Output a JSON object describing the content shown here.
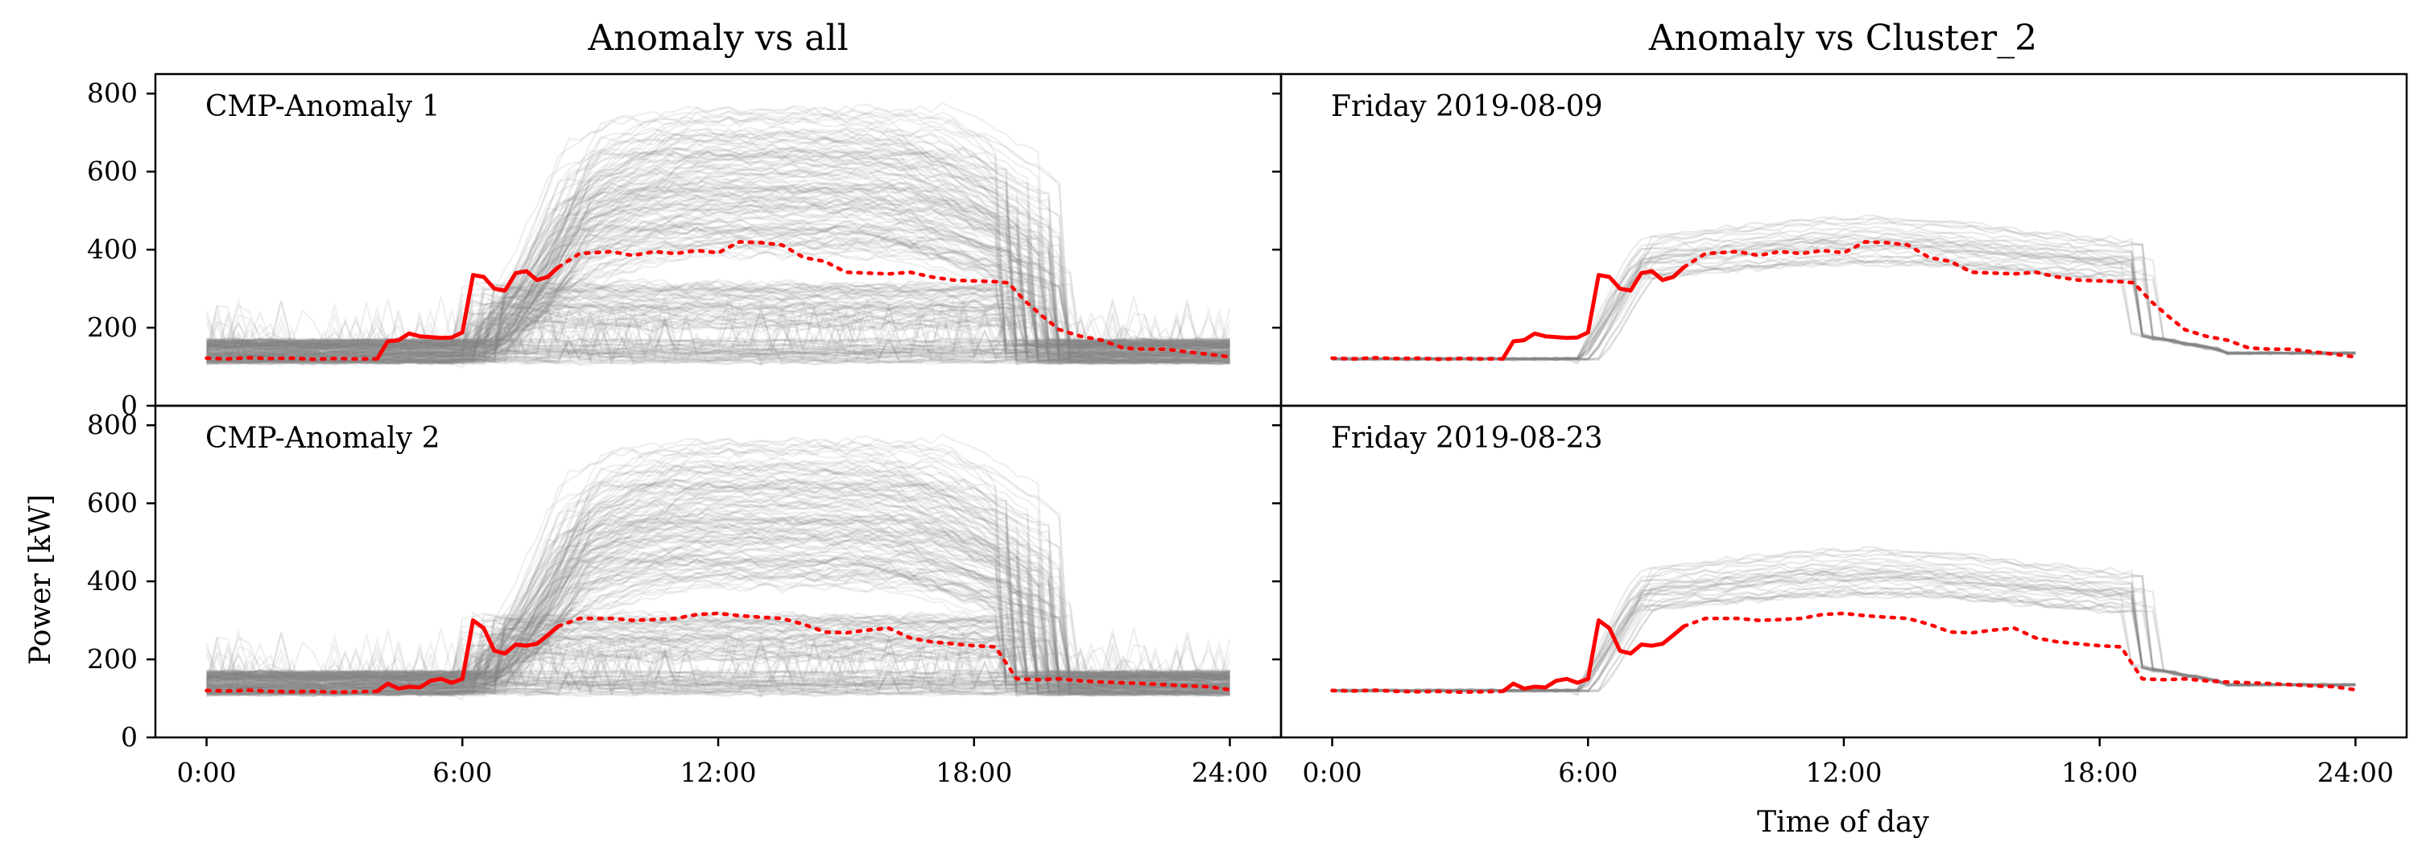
{
  "chart_data": [
    {
      "type": "line",
      "title": "Anomaly vs all",
      "annotation": "CMP-Anomaly 1",
      "xlabel": "",
      "ylabel": "",
      "xlim": [
        -1.2,
        25.2
      ],
      "ylim": [
        0,
        850
      ],
      "xticks": [
        "0:00",
        "6:00",
        "12:00",
        "18:00",
        "24:00"
      ],
      "yticks": [
        "0",
        "200",
        "400",
        "600",
        "800"
      ],
      "grid": false,
      "background": "all-days-gray",
      "series": [
        {
          "style": "dotted",
          "color": "#ff0000",
          "x": [
            0,
            0.5,
            1,
            1.5,
            2,
            2.5,
            3,
            3.5,
            4
          ],
          "y": [
            122,
            120,
            123,
            121,
            122,
            119,
            121,
            120,
            120
          ]
        },
        {
          "style": "solid",
          "color": "#ff0000",
          "x": [
            4,
            4.25,
            4.5,
            4.75,
            5,
            5.25,
            5.5,
            5.75,
            6,
            6.25,
            6.5,
            6.75,
            7,
            7.25,
            7.5,
            7.75,
            8,
            8.25
          ],
          "y": [
            120,
            165,
            168,
            185,
            178,
            176,
            174,
            175,
            188,
            335,
            330,
            300,
            295,
            340,
            345,
            322,
            330,
            355
          ]
        },
        {
          "style": "dotted",
          "color": "#ff0000",
          "x": [
            8.25,
            8.75,
            9.5,
            10,
            10.5,
            11,
            11.5,
            12,
            12.5,
            13,
            13.5,
            14,
            14.5,
            15,
            15.5,
            16,
            16.5,
            17,
            17.5,
            18,
            18.5,
            18.8,
            19.2,
            19.6,
            20,
            20.5,
            21,
            21.5,
            22,
            22.5,
            23,
            23.5,
            24
          ],
          "y": [
            355,
            390,
            395,
            385,
            395,
            390,
            398,
            392,
            420,
            418,
            412,
            380,
            370,
            342,
            340,
            338,
            342,
            330,
            322,
            320,
            318,
            315,
            268,
            230,
            195,
            178,
            168,
            148,
            145,
            145,
            138,
            132,
            125
          ]
        }
      ]
    },
    {
      "type": "line",
      "title": "Anomaly vs Cluster_2",
      "annotation": "Friday 2019-08-09",
      "xlabel": "",
      "ylabel": "",
      "xlim": [
        -1.2,
        25.2
      ],
      "ylim": [
        0,
        850
      ],
      "xticks": [
        "0:00",
        "6:00",
        "12:00",
        "18:00",
        "24:00"
      ],
      "yticks": [
        "0",
        "200",
        "400",
        "600",
        "800"
      ],
      "grid": false,
      "background": "cluster-days-gray",
      "series": [
        {
          "style": "dotted",
          "color": "#ff0000",
          "x": [
            0,
            0.5,
            1,
            1.5,
            2,
            2.5,
            3,
            3.5,
            4
          ],
          "y": [
            122,
            120,
            123,
            121,
            122,
            119,
            121,
            120,
            120
          ]
        },
        {
          "style": "solid",
          "color": "#ff0000",
          "x": [
            4,
            4.25,
            4.5,
            4.75,
            5,
            5.25,
            5.5,
            5.75,
            6,
            6.25,
            6.5,
            6.75,
            7,
            7.25,
            7.5,
            7.75,
            8,
            8.25
          ],
          "y": [
            120,
            165,
            168,
            185,
            178,
            176,
            174,
            175,
            188,
            335,
            330,
            300,
            295,
            340,
            345,
            322,
            330,
            355
          ]
        },
        {
          "style": "dotted",
          "color": "#ff0000",
          "x": [
            8.25,
            8.75,
            9.5,
            10,
            10.5,
            11,
            11.5,
            12,
            12.5,
            13,
            13.5,
            14,
            14.5,
            15,
            15.5,
            16,
            16.5,
            17,
            17.5,
            18,
            18.5,
            18.8,
            19.2,
            19.6,
            20,
            20.5,
            21,
            21.5,
            22,
            22.5,
            23,
            23.5,
            24
          ],
          "y": [
            355,
            390,
            395,
            385,
            395,
            390,
            398,
            392,
            420,
            418,
            412,
            380,
            370,
            342,
            340,
            338,
            342,
            330,
            322,
            320,
            318,
            315,
            268,
            230,
            195,
            178,
            168,
            148,
            145,
            145,
            138,
            132,
            125
          ]
        }
      ]
    },
    {
      "type": "line",
      "title": "",
      "annotation": "CMP-Anomaly 2",
      "xlabel": "",
      "ylabel": "Power [kW]",
      "xlim": [
        -1.2,
        25.2
      ],
      "ylim": [
        0,
        850
      ],
      "xticks": [
        "0:00",
        "6:00",
        "12:00",
        "18:00",
        "24:00"
      ],
      "yticks": [
        "0",
        "200",
        "400",
        "600",
        "800"
      ],
      "grid": false,
      "background": "all-days-gray",
      "series": [
        {
          "style": "dotted",
          "color": "#ff0000",
          "x": [
            0,
            0.5,
            1,
            1.5,
            2,
            2.5,
            3,
            3.5,
            4
          ],
          "y": [
            120,
            119,
            121,
            118,
            117,
            118,
            116,
            117,
            118
          ]
        },
        {
          "style": "solid",
          "color": "#ff0000",
          "x": [
            4,
            4.25,
            4.5,
            4.75,
            5,
            5.25,
            5.5,
            5.75,
            6,
            6.25,
            6.5,
            6.75,
            7,
            7.25,
            7.5,
            7.75,
            8,
            8.25
          ],
          "y": [
            118,
            138,
            125,
            130,
            128,
            145,
            150,
            140,
            150,
            300,
            280,
            222,
            215,
            238,
            235,
            240,
            262,
            285
          ]
        },
        {
          "style": "dotted",
          "color": "#ff0000",
          "x": [
            8.25,
            8.75,
            9.5,
            10,
            10.5,
            11,
            11.5,
            12,
            12.5,
            13,
            13.5,
            14,
            14.5,
            15,
            15.5,
            16,
            16.5,
            17,
            17.5,
            18,
            18.5,
            19,
            19.5,
            20,
            20.5,
            21,
            21.5,
            22,
            22.5,
            23,
            23.5,
            24
          ],
          "y": [
            285,
            305,
            305,
            300,
            302,
            305,
            315,
            318,
            312,
            308,
            305,
            290,
            270,
            268,
            275,
            280,
            255,
            245,
            240,
            235,
            232,
            150,
            148,
            150,
            145,
            142,
            140,
            138,
            135,
            132,
            130,
            122
          ]
        }
      ]
    },
    {
      "type": "line",
      "title": "",
      "annotation": "Friday 2019-08-23",
      "xlabel": "Time of day",
      "ylabel": "",
      "xlim": [
        -1.2,
        25.2
      ],
      "ylim": [
        0,
        850
      ],
      "xticks": [
        "0:00",
        "6:00",
        "12:00",
        "18:00",
        "24:00"
      ],
      "yticks": [
        "0",
        "200",
        "400",
        "600",
        "800"
      ],
      "grid": false,
      "background": "cluster-days-gray",
      "series": [
        {
          "style": "dotted",
          "color": "#ff0000",
          "x": [
            0,
            0.5,
            1,
            1.5,
            2,
            2.5,
            3,
            3.5,
            4
          ],
          "y": [
            120,
            119,
            121,
            118,
            117,
            118,
            116,
            117,
            118
          ]
        },
        {
          "style": "solid",
          "color": "#ff0000",
          "x": [
            4,
            4.25,
            4.5,
            4.75,
            5,
            5.25,
            5.5,
            5.75,
            6,
            6.25,
            6.5,
            6.75,
            7,
            7.25,
            7.5,
            7.75,
            8,
            8.25
          ],
          "y": [
            118,
            138,
            125,
            130,
            128,
            145,
            150,
            140,
            150,
            300,
            280,
            222,
            215,
            238,
            235,
            240,
            262,
            285
          ]
        },
        {
          "style": "dotted",
          "color": "#ff0000",
          "x": [
            8.25,
            8.75,
            9.5,
            10,
            10.5,
            11,
            11.5,
            12,
            12.5,
            13,
            13.5,
            14,
            14.5,
            15,
            15.5,
            16,
            16.5,
            17,
            17.5,
            18,
            18.5,
            19,
            19.5,
            20,
            20.5,
            21,
            21.5,
            22,
            22.5,
            23,
            23.5,
            24
          ],
          "y": [
            285,
            305,
            305,
            300,
            302,
            305,
            315,
            318,
            312,
            308,
            305,
            290,
            270,
            268,
            275,
            280,
            255,
            245,
            240,
            235,
            232,
            150,
            148,
            150,
            145,
            142,
            140,
            138,
            135,
            132,
            130,
            122
          ]
        }
      ]
    }
  ]
}
